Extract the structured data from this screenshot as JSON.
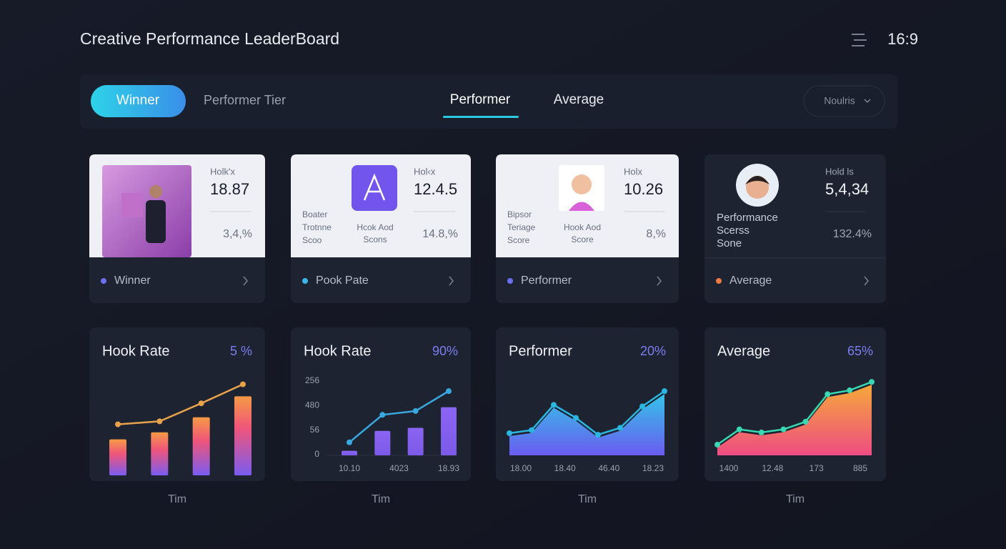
{
  "header": {
    "title": "Creative Performance LeaderBoard",
    "ratio": "16:9"
  },
  "tabs": [
    "Winner",
    "Performer Tier",
    "Performer",
    "Average"
  ],
  "dropdown": "Noulris",
  "cards": [
    {
      "label": "Holk'x",
      "value": "18.87",
      "left_lines": [],
      "mid_lines": [],
      "percent": "3,4,%",
      "footer": "Winner",
      "dot_color": "#6b6ff0"
    },
    {
      "label": "Hol‹x",
      "value": "12.4.5",
      "left_lines": [
        "Boater",
        "Trotnne",
        "Scoo"
      ],
      "mid_lines": [
        "Hcok Aod",
        "Scons"
      ],
      "percent": "14.8,%",
      "footer": "Pook Pate",
      "dot_color": "#3ab7e8"
    },
    {
      "label": "Holx",
      "value": "10.26",
      "left_lines": [
        "Bipsor",
        "Teriage",
        "Score"
      ],
      "mid_lines": [
        "Hook Aod",
        "Score"
      ],
      "percent": "8,%",
      "footer": "Performer",
      "dot_color": "#6b6ff0"
    },
    {
      "label": "Hold ls",
      "value": "5,4,34",
      "left_lines": [
        "Performance",
        "Scerss",
        "Sone"
      ],
      "mid_lines": [],
      "percent": "132.4%",
      "footer": "Average",
      "dot_color": "#f07845"
    }
  ],
  "charts": [
    {
      "type": "bar_line",
      "title": "Hook Rate",
      "percent": "5 %",
      "ylim": [
        0,
        100
      ],
      "bars": [
        36,
        43,
        58,
        79
      ],
      "line": [
        51,
        54,
        72,
        91
      ],
      "line_color": "#e8a24a",
      "y_labels": [],
      "x_labels": [],
      "x_axis": "Tim"
    },
    {
      "type": "bar_line",
      "title": "Hook Rate",
      "percent": "90%",
      "ylim": [
        0,
        100
      ],
      "bars": [
        6,
        32,
        36,
        63
      ],
      "line": [
        17,
        53,
        58,
        84
      ],
      "line_color": "#3aa8e0",
      "y_labels": [
        "256",
        "480",
        "56",
        "0"
      ],
      "x_labels": [
        "10.10",
        "4023",
        "18.93"
      ],
      "x_axis": "Tim"
    },
    {
      "type": "area",
      "title": "Performer",
      "percent": "20%",
      "ylim": [
        0,
        100
      ],
      "line": [
        29,
        33,
        66,
        49,
        27,
        36,
        64,
        84
      ],
      "line_color": "#2ab6e0",
      "y_labels": [],
      "x_labels": [
        "18.00",
        "18.40",
        "46.40",
        "18.23"
      ],
      "x_axis": "Tim"
    },
    {
      "type": "area",
      "title": "Average",
      "percent": "65%",
      "ylim": [
        0,
        100
      ],
      "line": [
        14,
        34,
        30,
        34,
        44,
        80,
        85,
        96
      ],
      "line_color": "#3ad8b0",
      "y_labels": [],
      "x_labels": [
        "1400",
        "12.48",
        "173",
        "885"
      ],
      "x_axis": "Tim"
    }
  ]
}
